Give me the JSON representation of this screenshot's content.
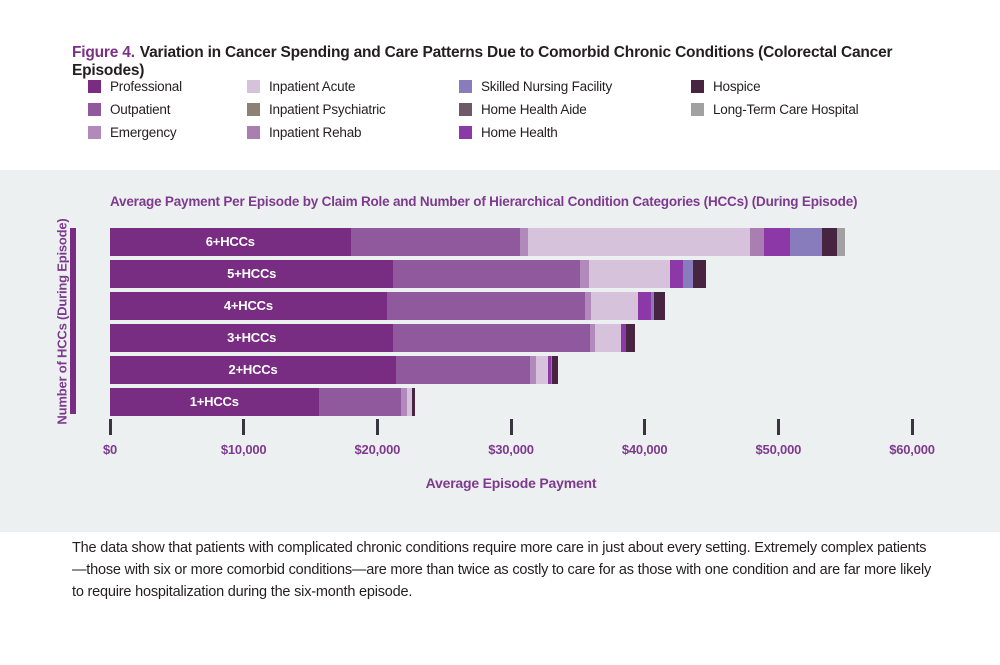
{
  "header": {
    "figure_label": "Figure 4.",
    "title": "Variation in Cancer Spending and Care Patterns Due to Comorbid Chronic Conditions (Colorectal Cancer Episodes)"
  },
  "legend": {
    "items": [
      {
        "label": "Professional",
        "color": "#782c82"
      },
      {
        "label": "Outpatient",
        "color": "#90599e"
      },
      {
        "label": "Emergency",
        "color": "#b189ba"
      },
      {
        "label": "Inpatient Acute",
        "color": "#d6c2da"
      },
      {
        "label": "Inpatient Psychiatric",
        "color": "#8b8174"
      },
      {
        "label": "Inpatient Rehab",
        "color": "#a87fb0"
      },
      {
        "label": "Skilled Nursing Facility",
        "color": "#897cbc"
      },
      {
        "label": "Home Health Aide",
        "color": "#6f5968"
      },
      {
        "label": "Home Health",
        "color": "#8c38a6"
      },
      {
        "label": "Hospice",
        "color": "#472540"
      },
      {
        "label": "Long-Term Care Hospital",
        "color": "#a1a1a1"
      }
    ]
  },
  "chart_data": {
    "type": "bar",
    "orientation": "horizontal",
    "stacked": true,
    "title": "Average Payment Per Episode by Claim Role and Number of Hierarchical Condition Categories (HCCs) (During Episode)",
    "xlabel": "Average Episode Payment",
    "ylabel": "Number of HCCs (During Episode)",
    "xlim": [
      0,
      60000
    ],
    "x_tick_values": [
      0,
      10000,
      20000,
      30000,
      40000,
      50000,
      60000
    ],
    "x_tick_labels": [
      "$0",
      "$10,000",
      "$20,000",
      "$30,000",
      "$40,000",
      "$50,000",
      "$60,000"
    ],
    "grid": false,
    "legend_position": "top",
    "categories": [
      "6+HCCs",
      "5+HCCs",
      "4+HCCs",
      "3+HCCs",
      "2+HCCs",
      "1+HCCs"
    ],
    "series": [
      {
        "name": "Professional",
        "color": "#782c82",
        "values": [
          18000,
          21200,
          20700,
          21200,
          21400,
          15600
        ]
      },
      {
        "name": "Outpatient",
        "color": "#90599e",
        "values": [
          12700,
          14000,
          14800,
          14700,
          10000,
          6200
        ]
      },
      {
        "name": "Emergency",
        "color": "#b189ba",
        "values": [
          600,
          600,
          500,
          400,
          500,
          400
        ]
      },
      {
        "name": "Inpatient Acute",
        "color": "#d6c2da",
        "values": [
          16600,
          6100,
          3500,
          1900,
          900,
          400
        ]
      },
      {
        "name": "Inpatient Psychiatric",
        "color": "#8b8174",
        "values": [
          0,
          0,
          0,
          0,
          0,
          0
        ]
      },
      {
        "name": "Inpatient Rehab",
        "color": "#a87fb0",
        "values": [
          1000,
          0,
          0,
          0,
          0,
          0
        ]
      },
      {
        "name": "Home Health",
        "color": "#8c38a6",
        "values": [
          2000,
          1000,
          1000,
          400,
          200,
          0
        ]
      },
      {
        "name": "Skilled Nursing Facility",
        "color": "#897cbc",
        "values": [
          2400,
          700,
          200,
          0,
          100,
          0
        ]
      },
      {
        "name": "Home Health Aide",
        "color": "#6f5968",
        "values": [
          0,
          0,
          0,
          0,
          0,
          0
        ]
      },
      {
        "name": "Hospice",
        "color": "#472540",
        "values": [
          1100,
          1000,
          800,
          700,
          400,
          200
        ]
      },
      {
        "name": "Long-Term Care Hospital",
        "color": "#a1a1a1",
        "values": [
          600,
          0,
          0,
          0,
          0,
          0
        ]
      }
    ],
    "approx_totals": [
      55000,
      44600,
      41500,
      39300,
      33500,
      22800
    ]
  },
  "footer": {
    "text": "The data show that patients with complicated chronic conditions require more care in just about every setting. Extremely complex patients—those with six or more comorbid conditions—are more than twice as costly to care for as those with one condition and are far more likely to require hospitalization during the six-month episode."
  }
}
